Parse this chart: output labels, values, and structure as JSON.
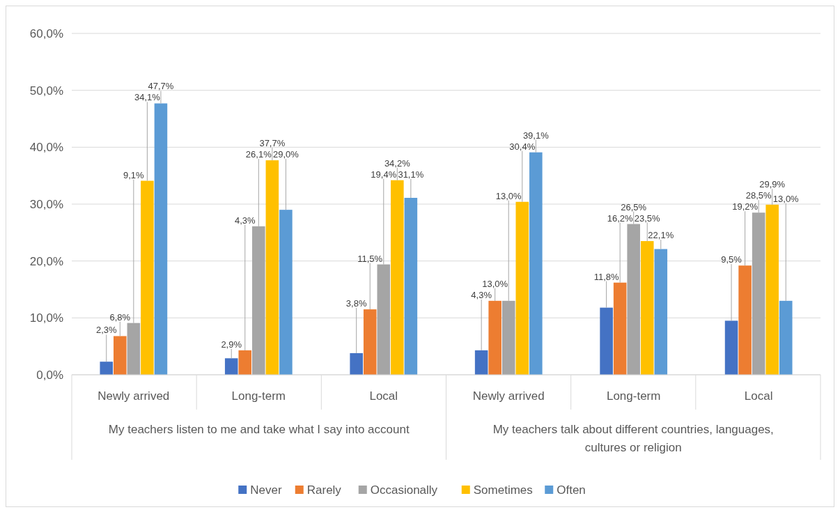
{
  "chart_data": {
    "type": "bar",
    "categories": [
      "Newly arrived",
      "Long-term",
      "Local",
      "Newly arrived",
      "Long-term",
      "Local"
    ],
    "annotations": [
      "My teachers listen to me and take what I say into account",
      "My teachers talk about different countries, languages, cultures or religion"
    ],
    "series": [
      {
        "name": "Never",
        "color": "#4472c4",
        "values": [
          2.3,
          2.9,
          3.8,
          4.3,
          11.8,
          9.5
        ],
        "value_labels": [
          "2,3%",
          "2,9%",
          "3,8%",
          "4,3%",
          "11,8%",
          "9,5%"
        ]
      },
      {
        "name": "Rarely",
        "color": "#ed7d31",
        "values": [
          6.8,
          4.3,
          11.5,
          13.0,
          16.2,
          19.2
        ],
        "value_labels": [
          "6,8%",
          "4,3%",
          "11,5%",
          "13,0%",
          "16,2%",
          "19,2%"
        ]
      },
      {
        "name": "Occasionally",
        "color": "#a5a5a5",
        "values": [
          9.1,
          26.1,
          19.4,
          13.0,
          26.5,
          28.5
        ],
        "value_labels": [
          "9,1%",
          "26,1%",
          "19,4%",
          "13,0%",
          "26,5%",
          "28,5%"
        ]
      },
      {
        "name": "Sometimes",
        "color": "#ffc000",
        "values": [
          34.1,
          37.7,
          34.2,
          30.4,
          23.5,
          29.9
        ],
        "value_labels": [
          "34,1%",
          "37,7%",
          "34,2%",
          "30,4%",
          "23,5%",
          "29,9%"
        ]
      },
      {
        "name": "Often",
        "color": "#5b9bd5",
        "values": [
          47.7,
          29.0,
          31.1,
          39.1,
          22.1,
          13.0
        ],
        "value_labels": [
          "47,7%",
          "29,0%",
          "31,1%",
          "39,1%",
          "22,1%",
          "13,0%"
        ]
      }
    ],
    "ylim": [
      0,
      60
    ],
    "yticks": [
      {
        "value": 0,
        "label": "0,0%"
      },
      {
        "value": 10,
        "label": "10,0%"
      },
      {
        "value": 20,
        "label": "20,0%"
      },
      {
        "value": 30,
        "label": "30,0%"
      },
      {
        "value": 40,
        "label": "40,0%"
      },
      {
        "value": 50,
        "label": "50,0%"
      },
      {
        "value": 60,
        "label": "60,0%"
      }
    ],
    "grid": "y",
    "legend": "bottom"
  }
}
